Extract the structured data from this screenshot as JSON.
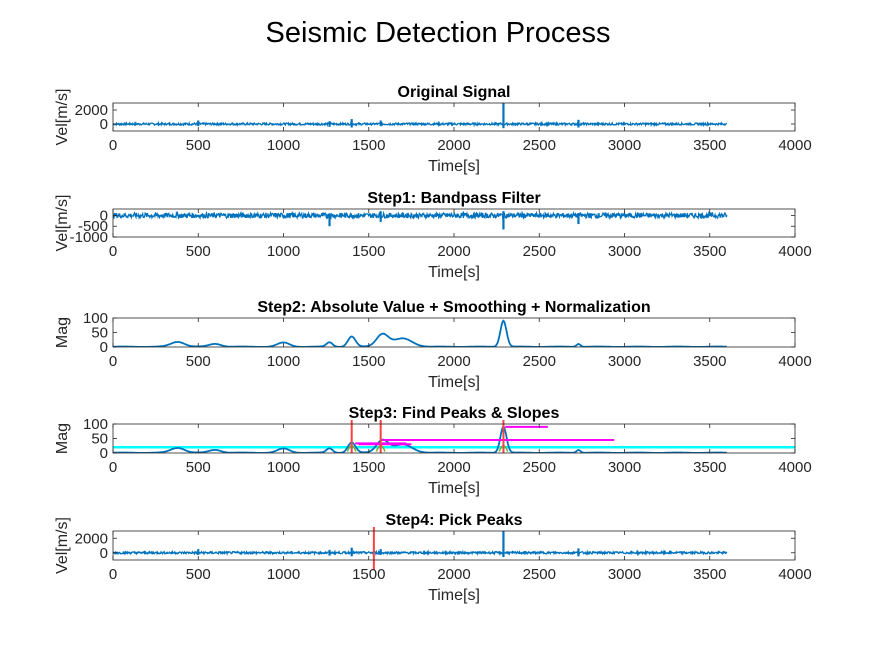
{
  "figure": {
    "title": "Seismic Detection Process"
  },
  "colors": {
    "signal": "#0072BD",
    "threshold": "#00FFFF",
    "peak_marker": "#FF4040",
    "slope": "#FF00FF",
    "slope_fit": "#77AC30"
  },
  "chart_data": [
    {
      "type": "line",
      "title": "Original Signal",
      "xlabel": "Time[s]",
      "ylabel": "Vel[m/s]",
      "xlim": [
        0,
        4000
      ],
      "ylim": [
        -1000,
        3000
      ],
      "xticks": [
        0,
        500,
        1000,
        1500,
        2000,
        2500,
        3000,
        3500,
        4000
      ],
      "yticks": [
        0,
        2000
      ],
      "baseline": 0,
      "noise": 150,
      "series": [
        {
          "x_range": [
            0,
            3600
          ],
          "spikes": [
            {
              "t": 500,
              "lo": -300,
              "hi": 500
            },
            {
              "t": 1270,
              "lo": -400,
              "hi": 400
            },
            {
              "t": 1400,
              "lo": -500,
              "hi": 700
            },
            {
              "t": 1570,
              "lo": -300,
              "hi": 500
            },
            {
              "t": 2290,
              "lo": -600,
              "hi": 3000
            },
            {
              "t": 2730,
              "lo": -500,
              "hi": 600
            }
          ]
        }
      ]
    },
    {
      "type": "line",
      "title": "Step1: Bandpass Filter",
      "xlabel": "Time[s]",
      "ylabel": "Vel[m/s]",
      "xlim": [
        0,
        4000
      ],
      "ylim": [
        -1000,
        300
      ],
      "xticks": [
        0,
        500,
        1000,
        1500,
        2000,
        2500,
        3000,
        3500,
        4000
      ],
      "yticks": [
        0,
        -500,
        -1000
      ],
      "baseline": 0,
      "noise": 120,
      "series": [
        {
          "x_range": [
            0,
            3600
          ],
          "spikes": [
            {
              "t": 1270,
              "lo": -500,
              "hi": 100
            },
            {
              "t": 1570,
              "lo": -300,
              "hi": 200
            },
            {
              "t": 2290,
              "lo": -650,
              "hi": 200
            },
            {
              "t": 2730,
              "lo": -400,
              "hi": 100
            }
          ]
        }
      ]
    },
    {
      "type": "line",
      "title": "Step2: Absolute Value + Smoothing + Normalization",
      "xlabel": "Time[s]",
      "ylabel": "Mag",
      "xlim": [
        0,
        4000
      ],
      "ylim": [
        0,
        100
      ],
      "xticks": [
        0,
        500,
        1000,
        1500,
        2000,
        2500,
        3000,
        3500,
        4000
      ],
      "yticks": [
        0,
        50,
        100
      ],
      "series": [
        {
          "x_range": [
            0,
            3600
          ],
          "bumps": [
            {
              "c": 380,
              "w": 40,
              "h": 17
            },
            {
              "c": 600,
              "w": 35,
              "h": 10
            },
            {
              "c": 1000,
              "w": 35,
              "h": 14
            },
            {
              "c": 1270,
              "w": 18,
              "h": 15
            },
            {
              "c": 1400,
              "w": 22,
              "h": 35
            },
            {
              "c": 1580,
              "w": 35,
              "h": 43
            },
            {
              "c": 1700,
              "w": 55,
              "h": 28
            },
            {
              "c": 2290,
              "w": 18,
              "h": 90
            },
            {
              "c": 2730,
              "w": 12,
              "h": 10
            }
          ]
        }
      ]
    },
    {
      "type": "line",
      "title": "Step3: Find Peaks & Slopes",
      "xlabel": "Time[s]",
      "ylabel": "Mag",
      "xlim": [
        0,
        4000
      ],
      "ylim": [
        0,
        100
      ],
      "xticks": [
        0,
        500,
        1000,
        1500,
        2000,
        2500,
        3000,
        3500,
        4000
      ],
      "yticks": [
        0,
        50,
        100
      ],
      "threshold": 20,
      "peaks_x": [
        1400,
        1570,
        2290
      ],
      "slopes": [
        {
          "x": [
            1420,
            1720
          ],
          "y": 33
        },
        {
          "x": [
            1440,
            1750
          ],
          "y": 30
        },
        {
          "x": [
            1580,
            2940
          ],
          "y": 45
        },
        {
          "x": [
            2300,
            2550
          ],
          "y": 90
        }
      ],
      "series": [
        {
          "x_range": [
            0,
            3600
          ],
          "bumps": [
            {
              "c": 380,
              "w": 40,
              "h": 17
            },
            {
              "c": 600,
              "w": 35,
              "h": 10
            },
            {
              "c": 1000,
              "w": 35,
              "h": 14
            },
            {
              "c": 1270,
              "w": 18,
              "h": 15
            },
            {
              "c": 1400,
              "w": 22,
              "h": 35
            },
            {
              "c": 1580,
              "w": 35,
              "h": 43
            },
            {
              "c": 1700,
              "w": 55,
              "h": 28
            },
            {
              "c": 2290,
              "w": 18,
              "h": 90
            },
            {
              "c": 2730,
              "w": 12,
              "h": 10
            }
          ]
        }
      ]
    },
    {
      "type": "line",
      "title": "Step4: Pick Peaks",
      "xlabel": "Time[s]",
      "ylabel": "Vel[m/s]",
      "xlim": [
        0,
        4000
      ],
      "ylim": [
        -1000,
        3000
      ],
      "xticks": [
        0,
        500,
        1000,
        1500,
        2000,
        2500,
        3000,
        3500,
        4000
      ],
      "yticks": [
        0,
        2000
      ],
      "baseline": 0,
      "noise": 150,
      "picks_x": [
        1530
      ],
      "series": [
        {
          "x_range": [
            0,
            3600
          ],
          "spikes": [
            {
              "t": 500,
              "lo": -300,
              "hi": 500
            },
            {
              "t": 1270,
              "lo": -400,
              "hi": 400
            },
            {
              "t": 1400,
              "lo": -500,
              "hi": 700
            },
            {
              "t": 1570,
              "lo": -300,
              "hi": 500
            },
            {
              "t": 2290,
              "lo": -600,
              "hi": 3000
            },
            {
              "t": 2730,
              "lo": -500,
              "hi": 600
            }
          ]
        }
      ]
    }
  ]
}
